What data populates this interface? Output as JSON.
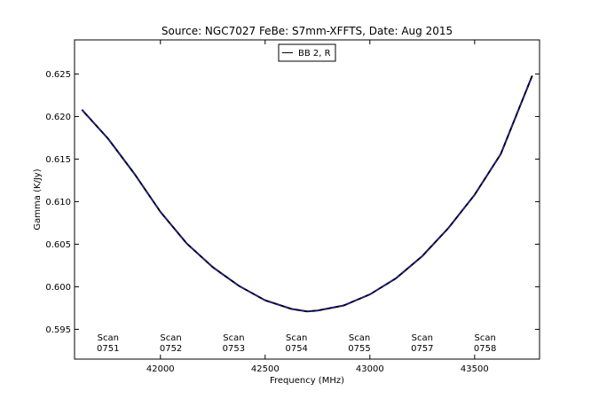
{
  "chart_data": {
    "type": "line",
    "title": "Source: NGC7027 FeBe: S7mm-XFFTS, Date: Aug 2015",
    "xlabel": "Frequency (MHz)",
    "ylabel": "Gamma (K/Jy)",
    "xlim": [
      41590,
      43810
    ],
    "ylim": [
      0.5915,
      0.629
    ],
    "x_ticks": [
      42000,
      42500,
      43000,
      43500
    ],
    "x_tick_labels": [
      "42000",
      "42500",
      "43000",
      "43500"
    ],
    "y_ticks": [
      0.595,
      0.6,
      0.605,
      0.61,
      0.615,
      0.62,
      0.625
    ],
    "y_tick_labels": [
      "0.595",
      "0.600",
      "0.605",
      "0.610",
      "0.615",
      "0.620",
      "0.625"
    ],
    "grid": false,
    "legend": {
      "placement": "top-center",
      "entries": [
        "BB 2, R"
      ]
    },
    "series": [
      {
        "name": "BB 2, R",
        "color": "#000000",
        "x": [
          41625,
          41750,
          41875,
          42000,
          42125,
          42250,
          42375,
          42500,
          42625,
          42700,
          42750,
          42875,
          43000,
          43125,
          43250,
          43375,
          43500,
          43625,
          43775
        ],
        "y": [
          0.6208,
          0.6174,
          0.6133,
          0.6088,
          0.6051,
          0.6023,
          0.6001,
          0.5984,
          0.5974,
          0.5971,
          0.5972,
          0.5978,
          0.5991,
          0.601,
          0.6036,
          0.6069,
          0.6108,
          0.6156,
          0.6248
        ]
      },
      {
        "name": "",
        "color": "#1f1fb4",
        "dashed": true,
        "x": [
          41625,
          41750,
          41875,
          42000,
          42125,
          42250,
          42375,
          42500,
          42625,
          42700,
          42750,
          42875,
          43000,
          43125,
          43250,
          43375,
          43500,
          43625,
          43775
        ],
        "y": [
          0.6208,
          0.6174,
          0.6133,
          0.6088,
          0.6051,
          0.6023,
          0.6001,
          0.5984,
          0.5974,
          0.5971,
          0.5972,
          0.5978,
          0.5991,
          0.601,
          0.6036,
          0.6069,
          0.6108,
          0.6156,
          0.6248
        ]
      }
    ],
    "annotations": [
      {
        "line1": "Scan",
        "line2": "0751",
        "x": 41750
      },
      {
        "line1": "Scan",
        "line2": "0752",
        "x": 42050
      },
      {
        "line1": "Scan",
        "line2": "0753",
        "x": 42350
      },
      {
        "line1": "Scan",
        "line2": "0754",
        "x": 42650
      },
      {
        "line1": "Scan",
        "line2": "0755",
        "x": 42950
      },
      {
        "line1": "Scan",
        "line2": "0757",
        "x": 43250
      },
      {
        "line1": "Scan",
        "line2": "0758",
        "x": 43550
      }
    ]
  }
}
